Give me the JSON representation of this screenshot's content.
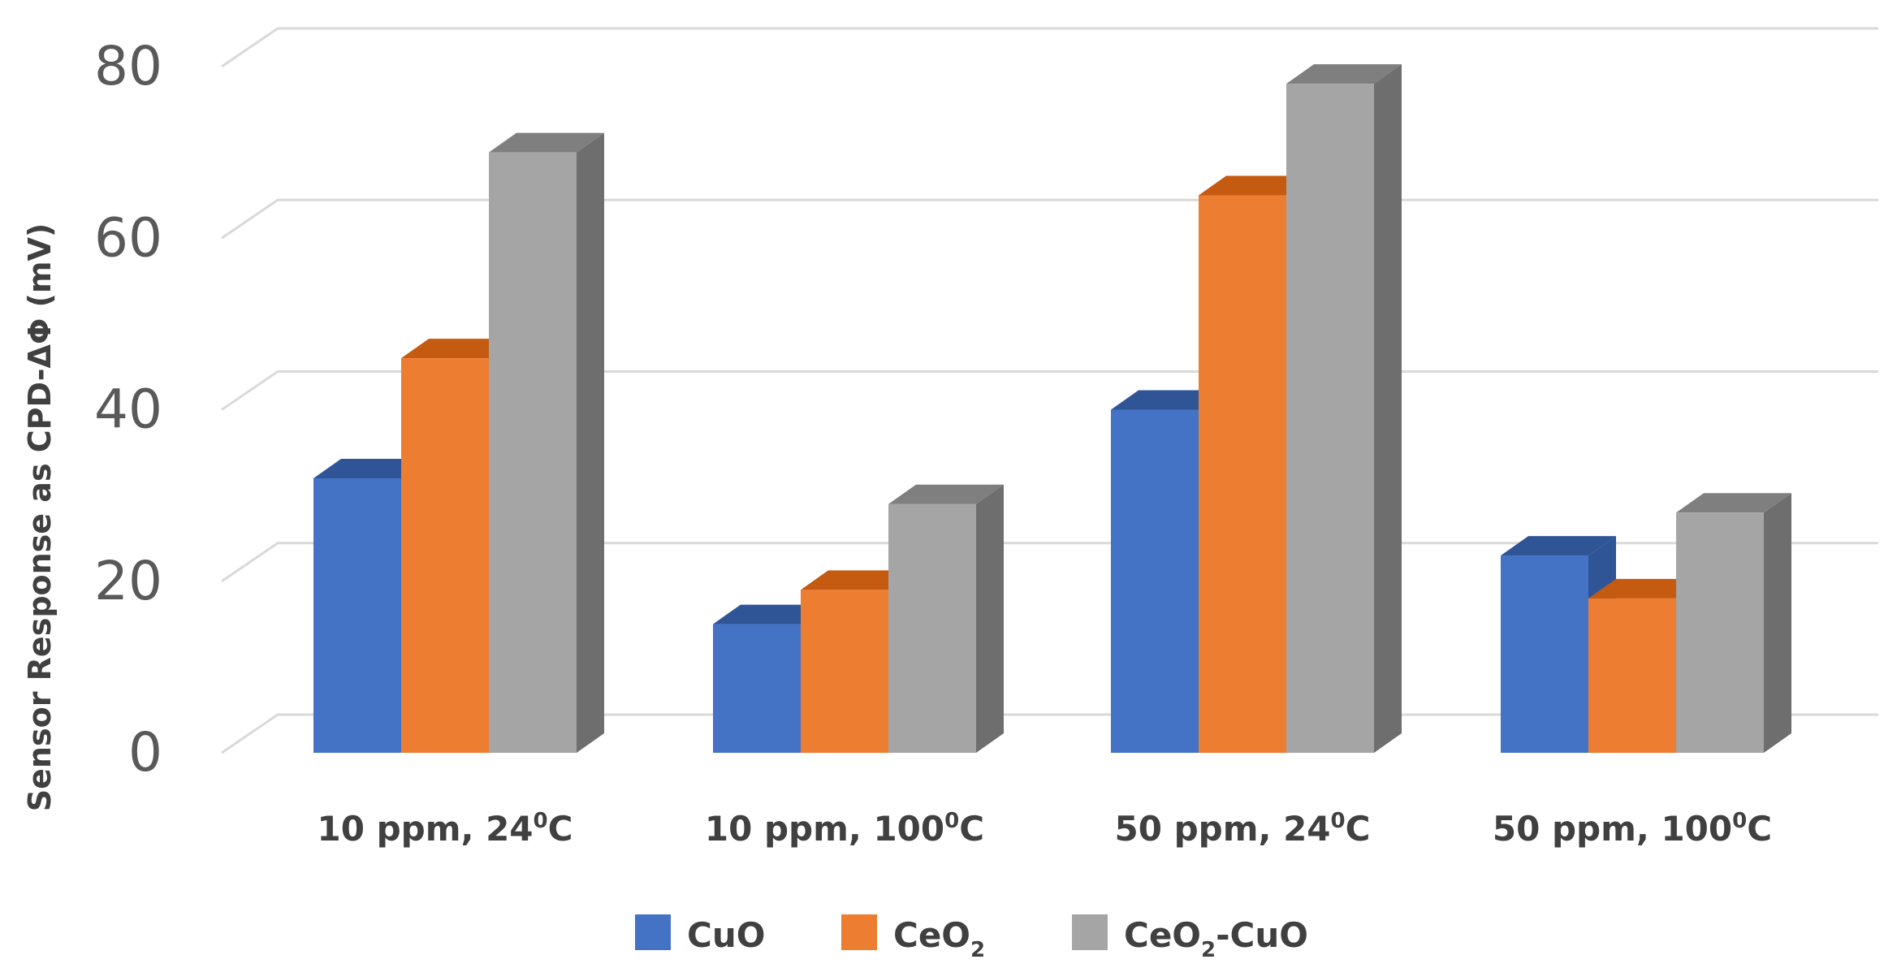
{
  "chart_data": {
    "type": "bar",
    "style": "3d-clustered-column",
    "title": "",
    "xlabel": "",
    "ylabel": "Sensor Response as CPD-ΔΦ (mV)",
    "ylim": [
      0,
      80
    ],
    "yticks": [
      0,
      20,
      40,
      60,
      80
    ],
    "grid": true,
    "legend_position": "bottom",
    "categories": [
      {
        "main": "10 ppm, 24",
        "sup": "0",
        "unit": "C"
      },
      {
        "main": "10 ppm, 100",
        "sup": "0",
        "unit": "C"
      },
      {
        "main": "50 ppm, 24",
        "sup": "0",
        "unit": "C"
      },
      {
        "main": "50 ppm, 100",
        "sup": "0",
        "unit": "C"
      }
    ],
    "series": [
      {
        "name": "CuO",
        "name_main": "CuO",
        "name_sub": "",
        "name_tail": "",
        "color": "#4472C4",
        "top_color": "#2F5597",
        "side_color": "#2F5597",
        "values": [
          32,
          15,
          40,
          23
        ]
      },
      {
        "name": "CeO2",
        "name_main": "CeO",
        "name_sub": "2",
        "name_tail": "",
        "color": "#ED7D31",
        "top_color": "#C55A11",
        "side_color": "#C55A11",
        "values": [
          46,
          19,
          65,
          18
        ]
      },
      {
        "name": "CeO2-CuO",
        "name_main": "CeO",
        "name_sub": "2",
        "name_tail": "-CuO",
        "color": "#A5A5A5",
        "top_color": "#7F7F7F",
        "side_color": "#6E6E6E",
        "values": [
          70,
          29,
          78,
          28
        ]
      }
    ]
  }
}
